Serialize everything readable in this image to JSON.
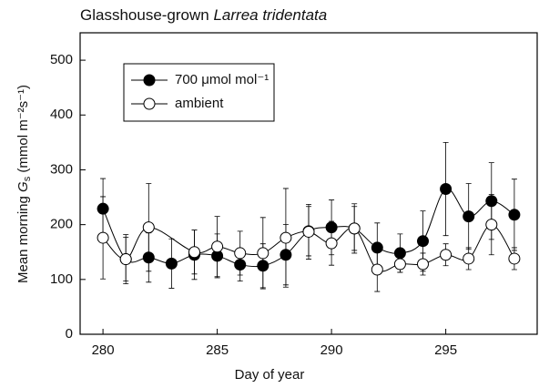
{
  "chart_data": {
    "type": "line",
    "title": [
      "Glasshouse-grown ",
      "Larrea tridentata"
    ],
    "y_label": [
      "Mean morning ",
      "G",
      "s",
      " (mmol m⁻²s⁻¹)"
    ],
    "x_label": "Day of year",
    "xlim": [
      279,
      299
    ],
    "xticks": [
      280,
      285,
      290,
      295
    ],
    "ylim": [
      0,
      550
    ],
    "yticks": [
      0,
      100,
      200,
      300,
      400,
      500
    ],
    "legend": "upper left",
    "series": [
      {
        "name": "700 μmol mol⁻¹",
        "color": "#000000",
        "marker": "filled",
        "x": [
          280,
          281,
          282,
          283,
          284,
          285,
          286,
          287,
          288,
          289,
          290,
          291,
          292,
          293,
          294,
          295,
          296,
          297,
          298
        ],
        "values": [
          229,
          137,
          140,
          129,
          145,
          143,
          127,
          125,
          145,
          188,
          195,
          193,
          158,
          148,
          170,
          265,
          215,
          243,
          218
        ],
        "errors": [
          55,
          45,
          45,
          45,
          45,
          40,
          30,
          40,
          55,
          45,
          50,
          45,
          45,
          35,
          55,
          85,
          60,
          70,
          65
        ]
      },
      {
        "name": "ambient",
        "color": "#000000",
        "marker": "open",
        "x": [
          280,
          281,
          282,
          284,
          285,
          286,
          287,
          288,
          289,
          290,
          291,
          292,
          293,
          294,
          295,
          296,
          297,
          298
        ],
        "values": [
          176,
          137,
          195,
          150,
          160,
          148,
          148,
          176,
          187,
          166,
          193,
          118,
          128,
          128,
          145,
          138,
          200,
          138
        ],
        "errors": [
          75,
          40,
          80,
          40,
          55,
          40,
          65,
          90,
          50,
          40,
          40,
          40,
          15,
          20,
          20,
          20,
          55,
          20
        ]
      }
    ]
  }
}
